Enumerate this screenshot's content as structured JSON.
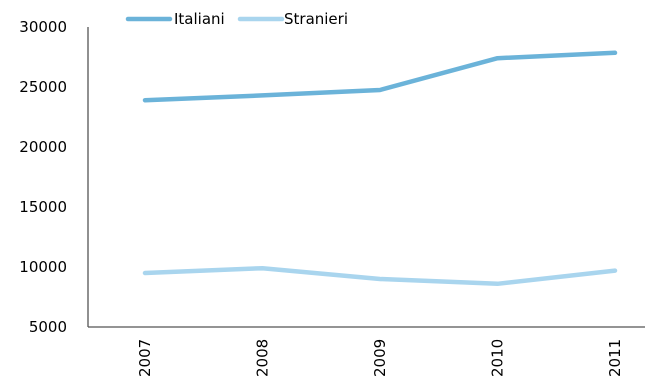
{
  "chart_data": {
    "type": "line",
    "title": "",
    "xlabel": "",
    "ylabel": "",
    "categories": [
      "2007",
      "2008",
      "2009",
      "2010",
      "2011"
    ],
    "ylim": [
      5000,
      30000
    ],
    "yticks": [
      5000,
      10000,
      15000,
      20000,
      25000,
      30000
    ],
    "grid": false,
    "legend_position": "top-left",
    "series": [
      {
        "name": "Italiani",
        "color": "#6bb3d9",
        "values": [
          23900,
          24300,
          24750,
          27400,
          27850
        ]
      },
      {
        "name": "Stranieri",
        "color": "#a9d5ee",
        "values": [
          9500,
          9900,
          9000,
          8600,
          9700
        ]
      }
    ]
  }
}
